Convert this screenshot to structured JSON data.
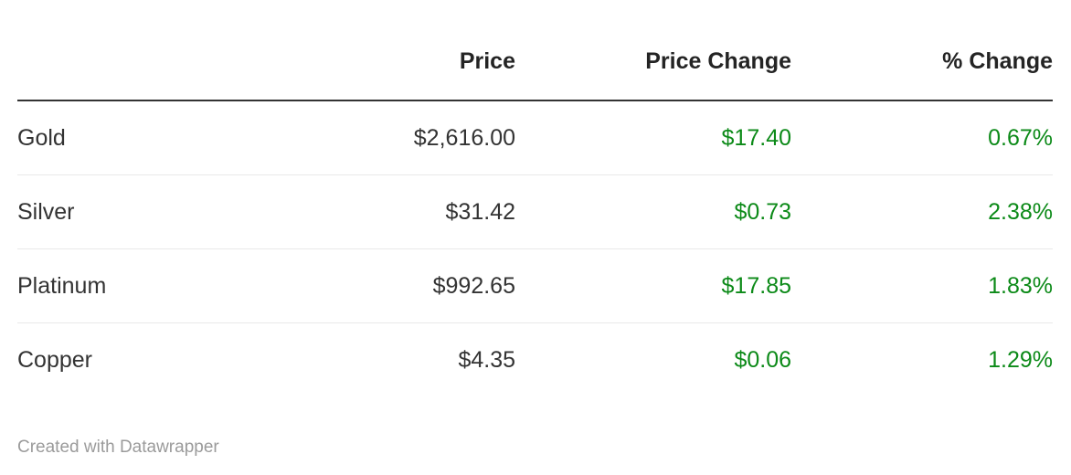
{
  "chart_data": {
    "type": "table",
    "columns": [
      "",
      "Price",
      "Price Change",
      "% Change"
    ],
    "column_align": [
      "left",
      "right",
      "right",
      "right"
    ],
    "rows": [
      {
        "metal": "Gold",
        "price": "$2,616.00",
        "price_change": "$17.40",
        "pct_change": "0.67%"
      },
      {
        "metal": "Silver",
        "price": "$31.42",
        "price_change": "$0.73",
        "pct_change": "2.38%"
      },
      {
        "metal": "Platinum",
        "price": "$992.65",
        "price_change": "$17.85",
        "pct_change": "1.83%"
      },
      {
        "metal": "Copper",
        "price": "$4.35",
        "price_change": "$0.06",
        "pct_change": "1.29%"
      }
    ],
    "positive_value_columns": [
      "price_change",
      "pct_change"
    ],
    "legend_position": "none",
    "grid": "horizontal-row-separators"
  },
  "footer": {
    "credit": "Created with Datawrapper"
  },
  "colors": {
    "positive": "#0c8a18",
    "header_text": "#242424",
    "body_text": "#333333",
    "header_rule": "#333333",
    "row_separator": "#e9e9e9",
    "footer_text": "#9b9b9b",
    "background": "#ffffff"
  }
}
